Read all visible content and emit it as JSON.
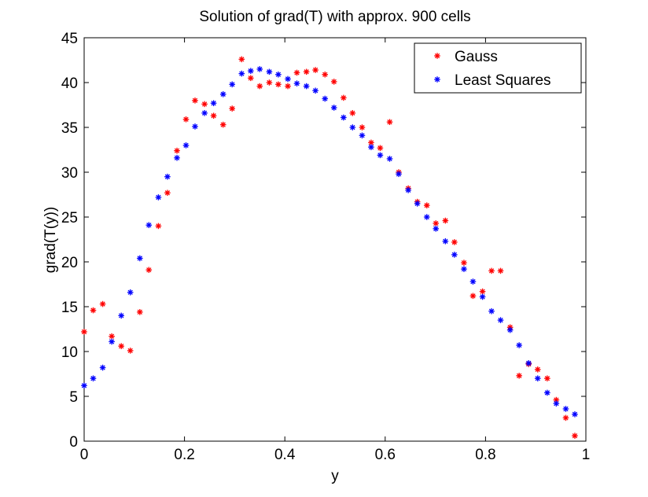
{
  "chart_data": {
    "type": "scatter",
    "title": "Solution of grad(T) with approx. 900 cells",
    "xlabel": "y",
    "ylabel": "grad(T(y))",
    "xlim": [
      0,
      1
    ],
    "ylim": [
      0,
      45
    ],
    "xticks": [
      0,
      0.2,
      0.4,
      0.6,
      0.8,
      1
    ],
    "xtick_labels": [
      "0",
      "0.2",
      "0.4",
      "0.6",
      "0.8",
      "1"
    ],
    "yticks": [
      0,
      5,
      10,
      15,
      20,
      25,
      30,
      35,
      40,
      45
    ],
    "ytick_labels": [
      "0",
      "5",
      "10",
      "15",
      "20",
      "25",
      "30",
      "35",
      "40",
      "45"
    ],
    "grid": false,
    "legend_position": "top-right",
    "marker": "*",
    "series": [
      {
        "name": "Gauss",
        "color": "#ff0000",
        "x": [
          0.0,
          0.018,
          0.037,
          0.055,
          0.074,
          0.092,
          0.111,
          0.129,
          0.148,
          0.166,
          0.185,
          0.203,
          0.221,
          0.24,
          0.258,
          0.277,
          0.295,
          0.314,
          0.332,
          0.35,
          0.369,
          0.387,
          0.406,
          0.424,
          0.443,
          0.461,
          0.48,
          0.498,
          0.517,
          0.535,
          0.554,
          0.572,
          0.59,
          0.609,
          0.627,
          0.646,
          0.664,
          0.683,
          0.701,
          0.72,
          0.738,
          0.757,
          0.775,
          0.794,
          0.812,
          0.83,
          0.849,
          0.867,
          0.886,
          0.904,
          0.923,
          0.941,
          0.96,
          0.978
        ],
        "y": [
          12.2,
          14.6,
          15.3,
          11.7,
          10.6,
          10.1,
          14.4,
          19.1,
          24.0,
          27.7,
          32.4,
          35.9,
          38.0,
          37.6,
          36.3,
          35.3,
          37.1,
          42.6,
          40.5,
          39.6,
          40.0,
          39.8,
          39.6,
          41.1,
          41.2,
          41.4,
          40.9,
          40.1,
          38.3,
          36.6,
          35.0,
          33.3,
          32.7,
          35.6,
          30.0,
          28.2,
          26.7,
          26.3,
          24.3,
          24.6,
          22.2,
          19.9,
          16.2,
          16.7,
          19.0,
          19.0,
          12.7,
          7.3,
          8.6,
          8.0,
          7.0,
          4.6,
          2.6,
          0.6
        ]
      },
      {
        "name": "Least Squares",
        "color": "#0000ff",
        "x": [
          0.0,
          0.018,
          0.037,
          0.055,
          0.074,
          0.092,
          0.111,
          0.129,
          0.148,
          0.166,
          0.185,
          0.203,
          0.221,
          0.24,
          0.258,
          0.277,
          0.295,
          0.314,
          0.332,
          0.35,
          0.369,
          0.387,
          0.406,
          0.424,
          0.443,
          0.461,
          0.48,
          0.498,
          0.517,
          0.535,
          0.554,
          0.572,
          0.59,
          0.609,
          0.627,
          0.646,
          0.664,
          0.683,
          0.701,
          0.72,
          0.738,
          0.757,
          0.775,
          0.794,
          0.812,
          0.83,
          0.849,
          0.867,
          0.886,
          0.904,
          0.923,
          0.941,
          0.96,
          0.978
        ],
        "y": [
          6.2,
          7.0,
          8.2,
          11.1,
          14.0,
          16.6,
          20.4,
          24.1,
          27.2,
          29.5,
          31.6,
          33.0,
          35.1,
          36.6,
          37.7,
          38.7,
          39.8,
          41.0,
          41.3,
          41.5,
          41.2,
          40.9,
          40.4,
          39.9,
          39.6,
          39.1,
          38.2,
          37.2,
          36.1,
          35.0,
          34.1,
          32.8,
          31.9,
          31.5,
          29.8,
          28.0,
          26.5,
          25.0,
          23.7,
          22.3,
          20.8,
          19.2,
          17.8,
          16.1,
          14.5,
          13.5,
          12.4,
          10.7,
          8.7,
          7.0,
          5.4,
          4.2,
          3.6,
          3.0
        ]
      }
    ]
  }
}
